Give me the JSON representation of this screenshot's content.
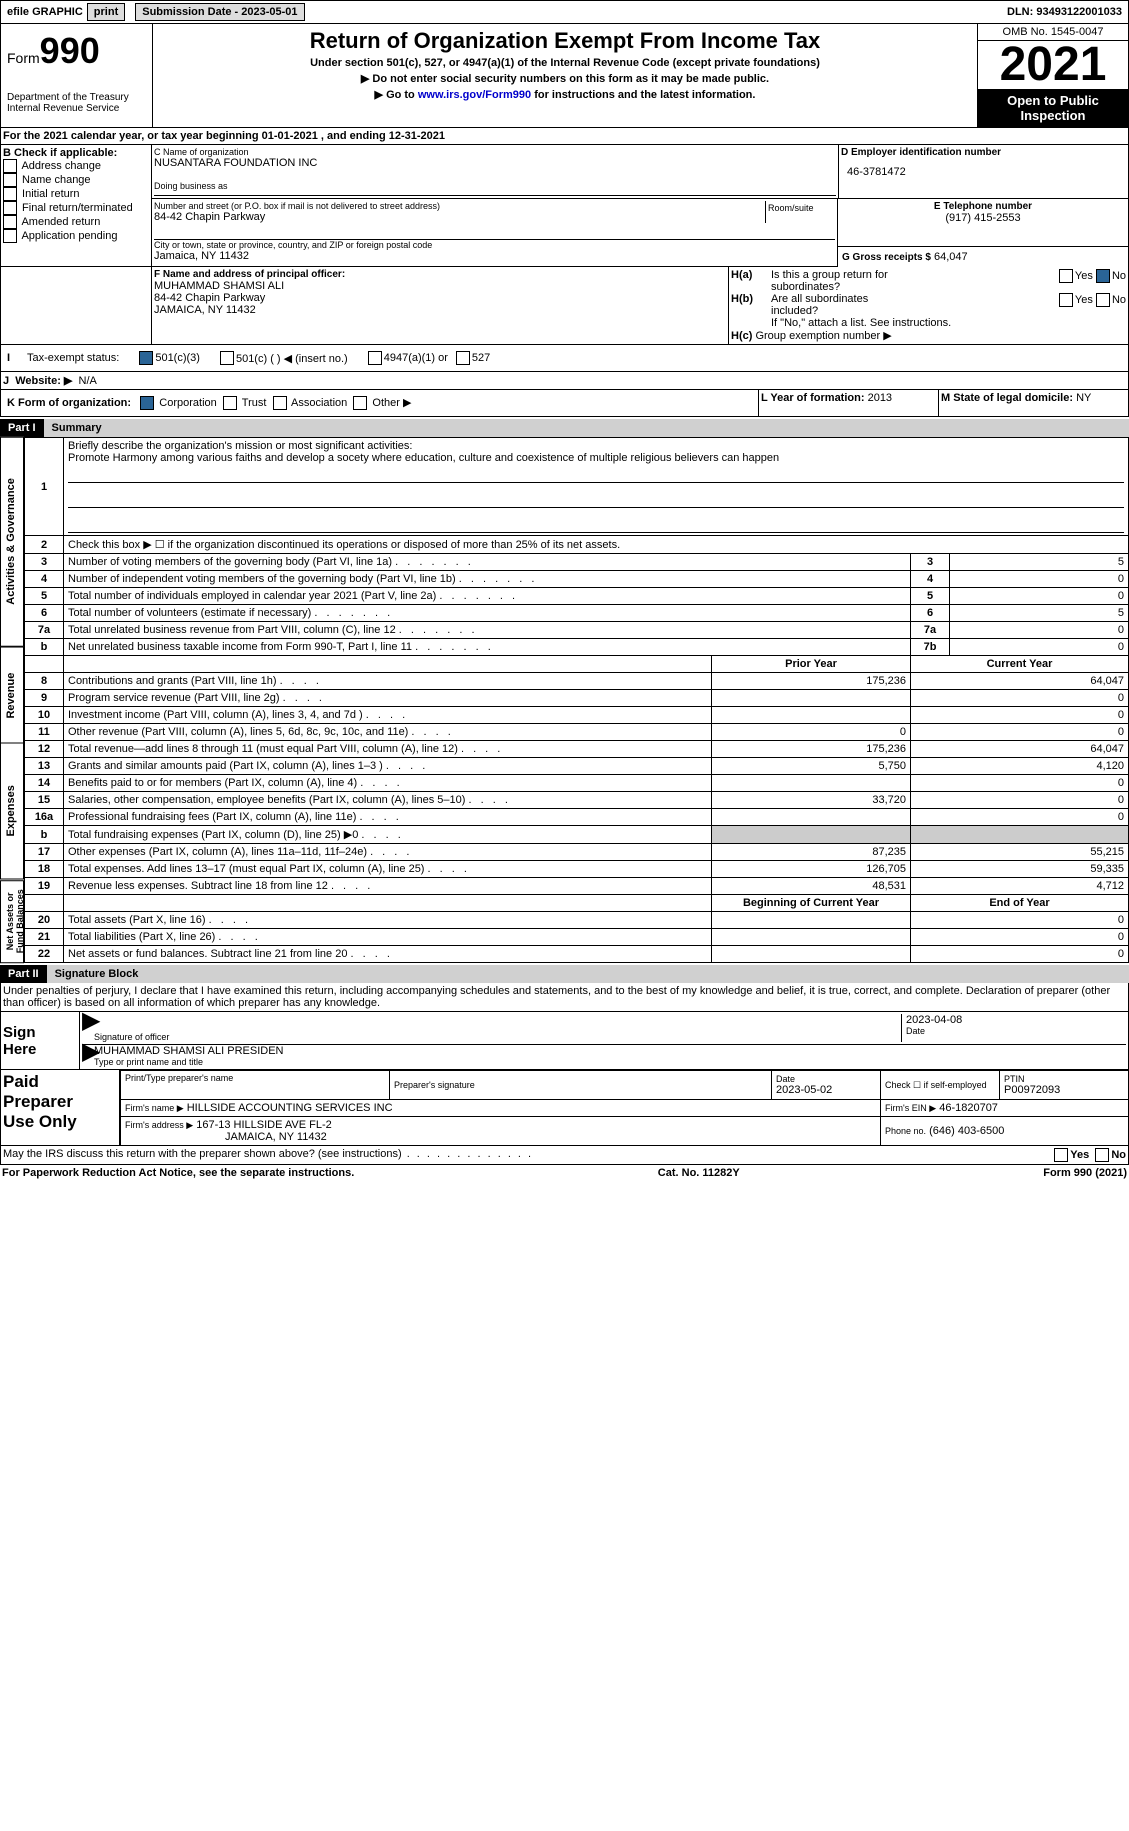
{
  "topbar": {
    "efile": "efile GRAPHIC",
    "print": "print",
    "submission": "Submission Date - 2023-05-01",
    "dln": "DLN: 93493122001033"
  },
  "header": {
    "form": "Form",
    "num": "990",
    "dept": "Department of the Treasury",
    "irs": "Internal Revenue Service",
    "title": "Return of Organization Exempt From Income Tax",
    "sub1": "Under section 501(c), 527, or 4947(a)(1) of the Internal Revenue Code (except private foundations)",
    "sub2": "▶ Do not enter social security numbers on this form as it may be made public.",
    "sub3a": "▶ Go to ",
    "link": "www.irs.gov/Form990",
    "sub3b": " for instructions and the latest information.",
    "omb": "OMB No. 1545-0047",
    "year": "2021",
    "inspect1": "Open to Public",
    "inspect2": "Inspection"
  },
  "A": {
    "text": "For the 2021 calendar year, or tax year beginning 01-01-2021   , and ending 12-31-2021"
  },
  "B": {
    "hdr": "B Check if applicable:",
    "opts": [
      "Address change",
      "Name change",
      "Initial return",
      "Final return/terminated",
      "Amended return",
      "Application pending"
    ]
  },
  "C": {
    "lbl": "C Name of organization",
    "name": "NUSANTARA FOUNDATION INC",
    "dba": "Doing business as",
    "street_lbl": "Number and street (or P.O. box if mail is not delivered to street address)",
    "room": "Room/suite",
    "street": "84-42 Chapin Parkway",
    "city_lbl": "City or town, state or province, country, and ZIP or foreign postal code",
    "city": "Jamaica, NY  11432"
  },
  "D": {
    "lbl": "D Employer identification number",
    "val": "46-3781472"
  },
  "E": {
    "lbl": "E Telephone number",
    "val": "(917) 415-2553"
  },
  "G": {
    "lbl": "G Gross receipts $",
    "val": "64,047"
  },
  "F": {
    "lbl": "F  Name and address of principal officer:",
    "name": "MUHAMMAD SHAMSI ALI",
    "addr1": "84-42 Chapin Parkway",
    "addr2": "JAMAICA, NY  11432"
  },
  "H": {
    "a": "Is this a group return for",
    "a2": "subordinates?",
    "b": "Are all subordinates",
    "b2": "included?",
    "note": "If \"No,\" attach a list. See instructions.",
    "c": "Group exemption number ▶",
    "yes": "Yes",
    "no": "No",
    "ha": "H(a)",
    "hb": "H(b)",
    "hc": "H(c)"
  },
  "I": {
    "lbl": "Tax-exempt status:",
    "o1": "501(c)(3)",
    "o2": "501(c) (  ) ◀ (insert no.)",
    "o3": "4947(a)(1) or",
    "o4": "527"
  },
  "J": {
    "lbl": "Website: ▶",
    "val": "N/A"
  },
  "K": {
    "lbl": "K Form of organization:",
    "opts": [
      "Corporation",
      "Trust",
      "Association",
      "Other ▶"
    ]
  },
  "L": {
    "lbl": "L Year of formation:",
    "val": "2013"
  },
  "M": {
    "lbl": "M State of legal domicile:",
    "val": "NY"
  },
  "partI": {
    "tag": "Part I",
    "title": "Summary"
  },
  "summary": {
    "vert1": "Activities & Governance",
    "vert2": "Revenue",
    "vert3": "Expenses",
    "vert4": "Net Assets or\nFund Balances",
    "l1": "Briefly describe the organization's mission or most significant activities:",
    "l1txt": "Promote Harmony among various faiths and develop a socety where education, culture and coexistence of multiple religious believers can happen",
    "l2": "Check this box ▶ ☐  if the organization discontinued its operations or disposed of more than 25% of its net assets.",
    "rows_gov": [
      {
        "n": "3",
        "d": "Number of voting members of the governing body (Part VI, line 1a)",
        "box": "3",
        "v": "5"
      },
      {
        "n": "4",
        "d": "Number of independent voting members of the governing body (Part VI, line 1b)",
        "box": "4",
        "v": "0"
      },
      {
        "n": "5",
        "d": "Total number of individuals employed in calendar year 2021 (Part V, line 2a)",
        "box": "5",
        "v": "0"
      },
      {
        "n": "6",
        "d": "Total number of volunteers (estimate if necessary)",
        "box": "6",
        "v": "5"
      },
      {
        "n": "7a",
        "d": "Total unrelated business revenue from Part VIII, column (C), line 12",
        "box": "7a",
        "v": "0"
      },
      {
        "n": "b",
        "d": "Net unrelated business taxable income from Form 990-T, Part I, line 11",
        "box": "7b",
        "v": "0"
      }
    ],
    "col_py": "Prior Year",
    "col_cy": "Current Year",
    "rows_rev": [
      {
        "n": "8",
        "d": "Contributions and grants (Part VIII, line 1h)",
        "py": "175,236",
        "cy": "64,047"
      },
      {
        "n": "9",
        "d": "Program service revenue (Part VIII, line 2g)",
        "py": "",
        "cy": "0"
      },
      {
        "n": "10",
        "d": "Investment income (Part VIII, column (A), lines 3, 4, and 7d )",
        "py": "",
        "cy": "0"
      },
      {
        "n": "11",
        "d": "Other revenue (Part VIII, column (A), lines 5, 6d, 8c, 9c, 10c, and 11e)",
        "py": "0",
        "cy": "0"
      },
      {
        "n": "12",
        "d": "Total revenue—add lines 8 through 11 (must equal Part VIII, column (A), line 12)",
        "py": "175,236",
        "cy": "64,047"
      }
    ],
    "rows_exp": [
      {
        "n": "13",
        "d": "Grants and similar amounts paid (Part IX, column (A), lines 1–3 )",
        "py": "5,750",
        "cy": "4,120"
      },
      {
        "n": "14",
        "d": "Benefits paid to or for members (Part IX, column (A), line 4)",
        "py": "",
        "cy": "0"
      },
      {
        "n": "15",
        "d": "Salaries, other compensation, employee benefits (Part IX, column (A), lines 5–10)",
        "py": "33,720",
        "cy": "0"
      },
      {
        "n": "16a",
        "d": "Professional fundraising fees (Part IX, column (A), line 11e)",
        "py": "",
        "cy": "0"
      },
      {
        "n": "b",
        "d": "Total fundraising expenses (Part IX, column (D), line 25) ▶0",
        "py": "SHADE",
        "cy": "SHADE"
      },
      {
        "n": "17",
        "d": "Other expenses (Part IX, column (A), lines 11a–11d, 11f–24e)",
        "py": "87,235",
        "cy": "55,215"
      },
      {
        "n": "18",
        "d": "Total expenses. Add lines 13–17 (must equal Part IX, column (A), line 25)",
        "py": "126,705",
        "cy": "59,335"
      },
      {
        "n": "19",
        "d": "Revenue less expenses. Subtract line 18 from line 12",
        "py": "48,531",
        "cy": "4,712"
      }
    ],
    "col_bcy": "Beginning of Current Year",
    "col_eoy": "End of Year",
    "rows_net": [
      {
        "n": "20",
        "d": "Total assets (Part X, line 16)",
        "py": "",
        "cy": "0"
      },
      {
        "n": "21",
        "d": "Total liabilities (Part X, line 26)",
        "py": "",
        "cy": "0"
      },
      {
        "n": "22",
        "d": "Net assets or fund balances. Subtract line 21 from line 20",
        "py": "",
        "cy": "0"
      }
    ]
  },
  "partII": {
    "tag": "Part II",
    "title": "Signature Block",
    "decl": "Under penalties of perjury, I declare that I have examined this return, including accompanying schedules and statements, and to the best of my knowledge and belief, it is true, correct, and complete. Declaration of preparer (other than officer) is based on all information of which preparer has any knowledge."
  },
  "sign": {
    "here": "Sign\nHere",
    "sig": "Signature of officer",
    "date": "Date",
    "date_val": "2023-04-08",
    "name": "MUHAMMAD SHAMSI ALI  PRESIDEN",
    "type": "Type or print name and title"
  },
  "prep": {
    "hdr": "Paid\nPreparer\nUse Only",
    "c1": "Print/Type preparer's name",
    "c2": "Preparer's signature",
    "c3": "Date",
    "c3v": "2023-05-02",
    "c4": "Check ☐ if self-employed",
    "c5": "PTIN",
    "c5v": "P00972093",
    "firm": "Firm's name      ▶",
    "firmv": "HILLSIDE ACCOUNTING SERVICES INC",
    "ein": "Firm's EIN ▶",
    "einv": "46-1820707",
    "addr": "Firm's address ▶",
    "addrv1": "167-13 HILLSIDE AVE FL-2",
    "addrv2": "JAMAICA, NY  11432",
    "phone": "Phone no.",
    "phonev": "(646) 403-6500"
  },
  "discuss": "May the IRS discuss this return with the preparer shown above? (see instructions)",
  "footer": {
    "l": "For Paperwork Reduction Act Notice, see the separate instructions.",
    "m": "Cat. No. 11282Y",
    "r": "Form 990 (2021)"
  }
}
